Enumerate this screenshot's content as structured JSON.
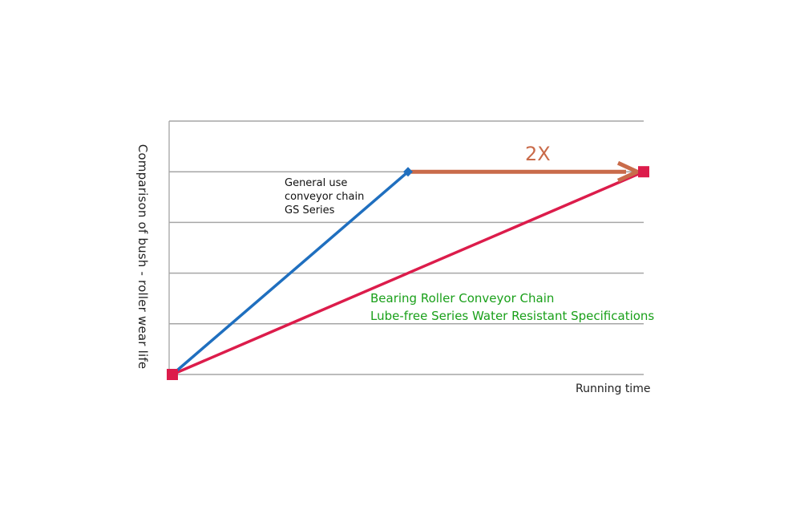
{
  "chart_data": {
    "type": "line",
    "xlabel": "Running time",
    "ylabel": "Comparison of bush - roller wear life",
    "xlim": [
      0,
      2
    ],
    "ylim": [
      0,
      5
    ],
    "grid": true,
    "gridlines_y": [
      1,
      2,
      3,
      4,
      5
    ],
    "series": [
      {
        "labels": [
          "General use",
          "conveyor chain",
          "GS Series"
        ],
        "color": "#1f6fbf",
        "marker": "diamond",
        "x": [
          0,
          1
        ],
        "y": [
          0,
          4
        ]
      },
      {
        "labels": [
          "Bearing Roller Conveyor Chain",
          "Lube-free Series Water Resistant Specifications"
        ],
        "color": "#dc1c4b",
        "marker": "square",
        "x": [
          0,
          2
        ],
        "y": [
          0,
          4
        ]
      }
    ],
    "annotations": [
      {
        "text": "2X",
        "type": "arrow",
        "from": [
          1,
          4
        ],
        "to": [
          2,
          4
        ],
        "color": "#c96b4a"
      }
    ]
  }
}
